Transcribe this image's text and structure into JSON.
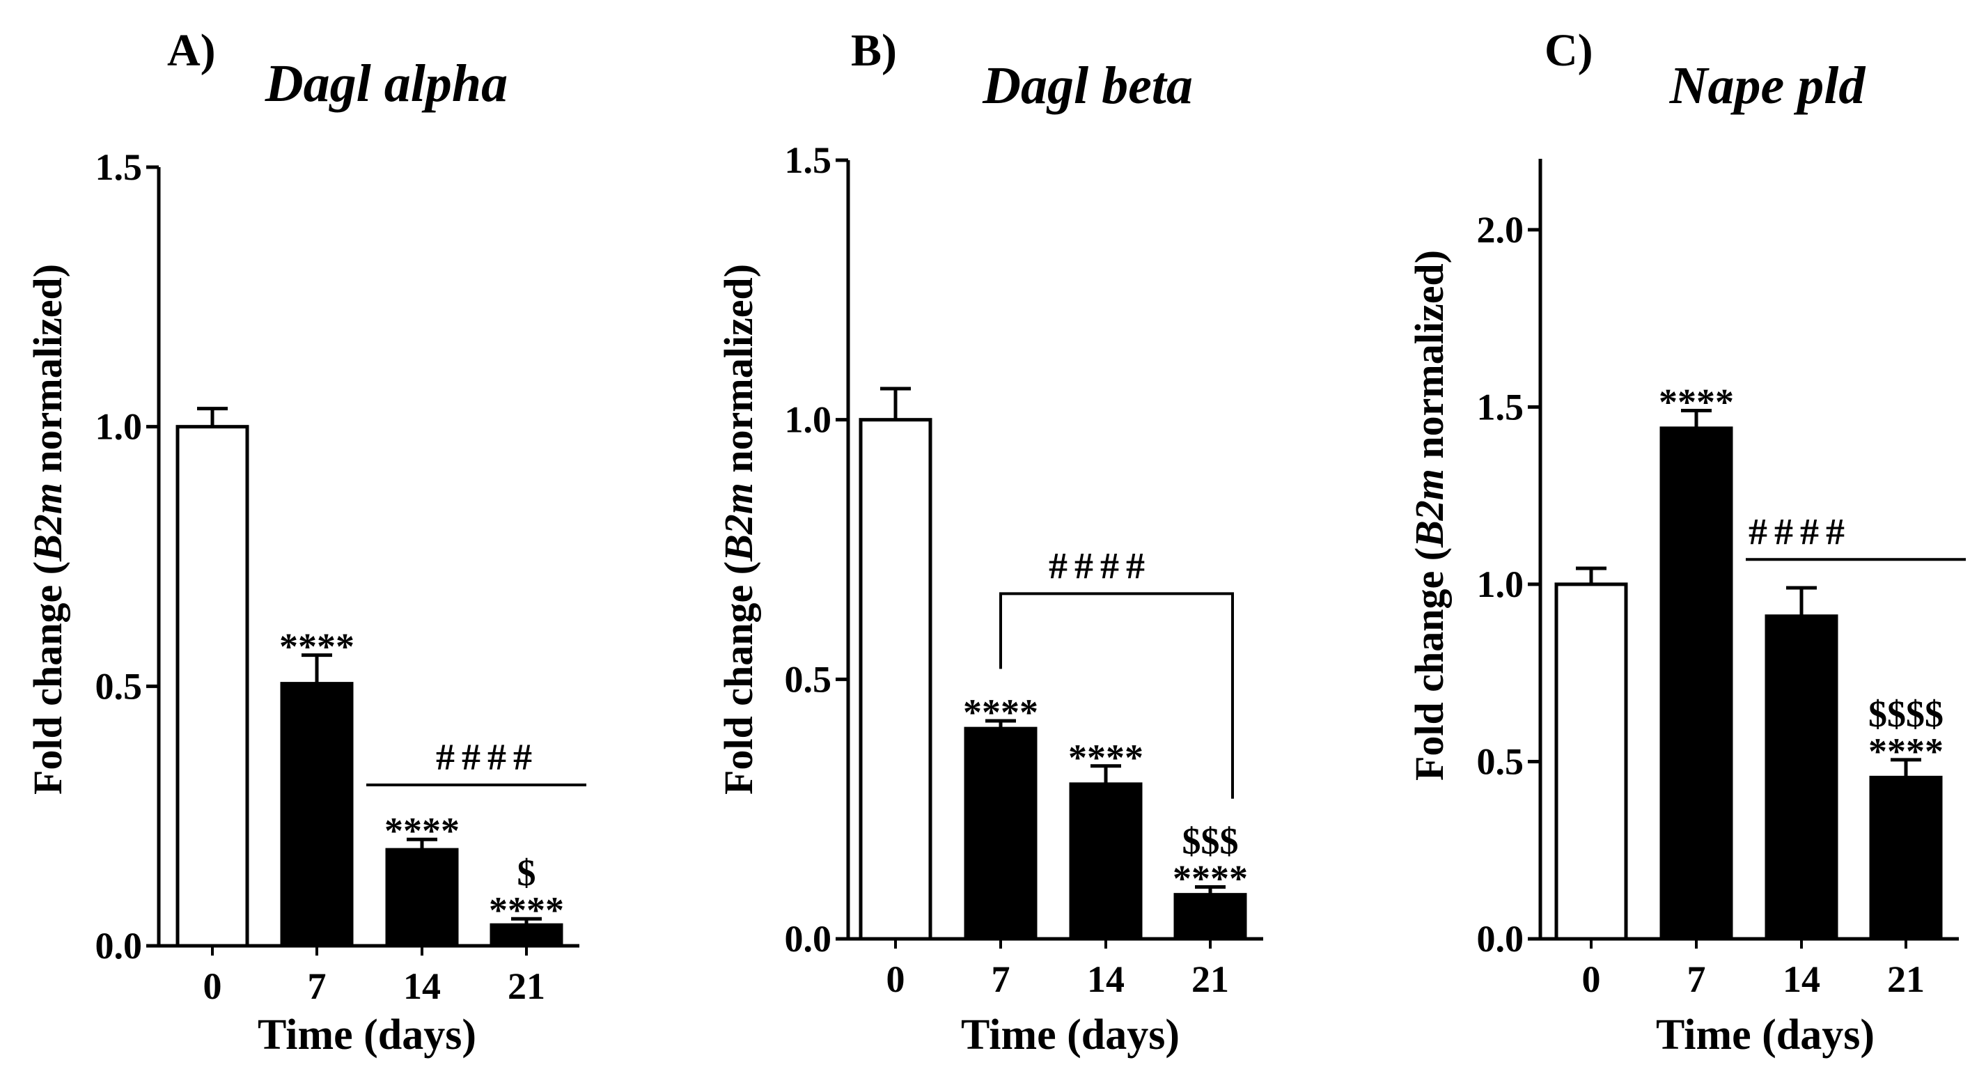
{
  "chart_data": [
    {
      "type": "bar",
      "panel": "A)",
      "title": "Dagl alpha",
      "ylabel": {
        "pre": "Fold change (",
        "italic": "B2m",
        "post": " normalized)"
      },
      "xlabel": "Time (days)",
      "categories": [
        "0",
        "7",
        "14",
        "21"
      ],
      "values": [
        1.0,
        0.505,
        0.185,
        0.04
      ],
      "errors": [
        0.035,
        0.055,
        0.02,
        0.012
      ],
      "bar_colors": [
        "#ffffff",
        "#000000",
        "#000000",
        "#000000"
      ],
      "ylim": [
        0,
        1.5
      ],
      "yticks": [
        0.0,
        0.5,
        1.0,
        1.5
      ],
      "ytick_labels": [
        "0.0",
        "0.5",
        "1.0",
        "1.5"
      ],
      "annotations": [
        {
          "bar": 1,
          "lines": [
            "****"
          ]
        },
        {
          "bar": 2,
          "lines": [
            "****"
          ]
        },
        {
          "bar": 3,
          "lines": [
            "$",
            "****"
          ]
        }
      ],
      "bracket": {
        "from": 2,
        "to": 3,
        "label": "####",
        "style": "line",
        "y": 0.31
      }
    },
    {
      "type": "bar",
      "panel": "B)",
      "title": "Dagl beta",
      "ylabel": {
        "pre": "Fold change (",
        "italic": "B2m",
        "post": " normalized)"
      },
      "xlabel": "Time (days)",
      "categories": [
        "0",
        "7",
        "14",
        "21"
      ],
      "values": [
        1.0,
        0.405,
        0.298,
        0.085
      ],
      "errors": [
        0.06,
        0.015,
        0.035,
        0.015
      ],
      "bar_colors": [
        "#ffffff",
        "#000000",
        "#000000",
        "#000000"
      ],
      "ylim": [
        0,
        1.5
      ],
      "yticks": [
        0.0,
        0.5,
        1.0,
        1.5
      ],
      "ytick_labels": [
        "0.0",
        "0.5",
        "1.0",
        "1.5"
      ],
      "annotations": [
        {
          "bar": 1,
          "lines": [
            "****"
          ]
        },
        {
          "bar": 2,
          "lines": [
            "****"
          ]
        },
        {
          "bar": 3,
          "lines": [
            "$$$",
            "****"
          ]
        }
      ],
      "bracket": {
        "from": 1,
        "to": 3,
        "label": "####",
        "style": "bracket",
        "y": 0.665,
        "drop_to": [
          0.52,
          0.27
        ]
      }
    },
    {
      "type": "bar",
      "panel": "C)",
      "title": "Nape pld",
      "ylabel": {
        "pre": "Fold change (",
        "italic": "B2m",
        "post": " normalized)"
      },
      "xlabel": "Time (days)",
      "categories": [
        "0",
        "7",
        "14",
        "21"
      ],
      "values": [
        1.0,
        1.44,
        0.91,
        0.455
      ],
      "errors": [
        0.045,
        0.05,
        0.08,
        0.05
      ],
      "bar_colors": [
        "#ffffff",
        "#000000",
        "#000000",
        "#000000"
      ],
      "ylim": [
        0,
        2.2
      ],
      "yticks": [
        0.0,
        0.5,
        1.0,
        1.5,
        2.0
      ],
      "ytick_labels": [
        "0.0",
        "0.5",
        "1.0",
        "1.5",
        "2.0"
      ],
      "annotations": [
        {
          "bar": 1,
          "lines": [
            "****"
          ]
        },
        {
          "bar": 3,
          "lines": [
            "$$$$",
            "****"
          ]
        }
      ],
      "bracket": {
        "from": 2,
        "to": 3,
        "label": "####",
        "style": "line",
        "y": 1.07
      }
    }
  ]
}
